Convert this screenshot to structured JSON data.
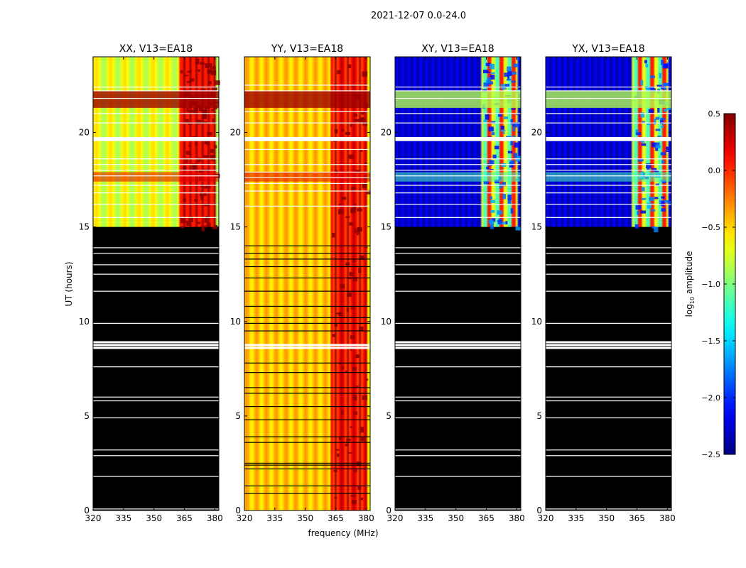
{
  "suptitle": "2021-12-07 0.0-24.0",
  "chart_data": {
    "type": "heatmap",
    "xlabel": "frequency (MHz)",
    "ylabel": "UT (hours)",
    "xlim": [
      320,
      382
    ],
    "ylim": [
      0,
      24
    ],
    "xticks": [
      320,
      335,
      350,
      365,
      380
    ],
    "yticks": [
      0,
      5,
      10,
      15,
      20
    ],
    "panels": [
      {
        "title": "XX, V13=EA18",
        "variant": "parallel",
        "data_from_hour": 15
      },
      {
        "title": "YY, V13=EA18",
        "variant": "parallel",
        "data_from_hour": 0
      },
      {
        "title": "XY, V13=EA18",
        "variant": "cross",
        "data_from_hour": 15
      },
      {
        "title": "YX, V13=EA18",
        "variant": "cross",
        "data_from_hour": 15
      }
    ],
    "rfi_band_mhz": [
      363,
      380
    ],
    "colorbar": {
      "label_main": "log",
      "label_sub": "10",
      "label_rest": " amplitude",
      "range": [
        -2.5,
        0.5
      ],
      "ticks": [
        "0.5",
        "0.0",
        "−0.5",
        "−1.0",
        "−1.5",
        "−2.0",
        "−2.5"
      ],
      "colormap": "jet"
    },
    "flagged_hours_common": [
      0.08,
      1.8,
      2.9,
      3.2,
      4.9,
      5.8,
      6.0,
      7.6,
      8.6,
      8.75,
      8.9,
      9.9,
      11.6,
      12.5,
      13.0,
      13.6,
      13.9,
      15.5,
      16.2,
      16.8,
      17.2,
      17.7,
      18.0,
      18.3,
      18.6,
      19.6,
      19.7,
      20.5,
      21.0,
      21.8,
      22.2,
      22.4
    ],
    "flagged_hours_yy": [
      0.9,
      1.3,
      2.2,
      2.4,
      2.5,
      3.6,
      3.9,
      4.8,
      5.5,
      6.2,
      6.5,
      7.3,
      7.8,
      8.6,
      8.75,
      9.5,
      9.9,
      10.2,
      10.8,
      11.6,
      12.3,
      12.9,
      13.3,
      13.6,
      14.0,
      16.1,
      16.9,
      17.3,
      17.6,
      17.9,
      18.3,
      19.1,
      19.6,
      19.7,
      20.5,
      21.1,
      22.2,
      22.5
    ]
  }
}
